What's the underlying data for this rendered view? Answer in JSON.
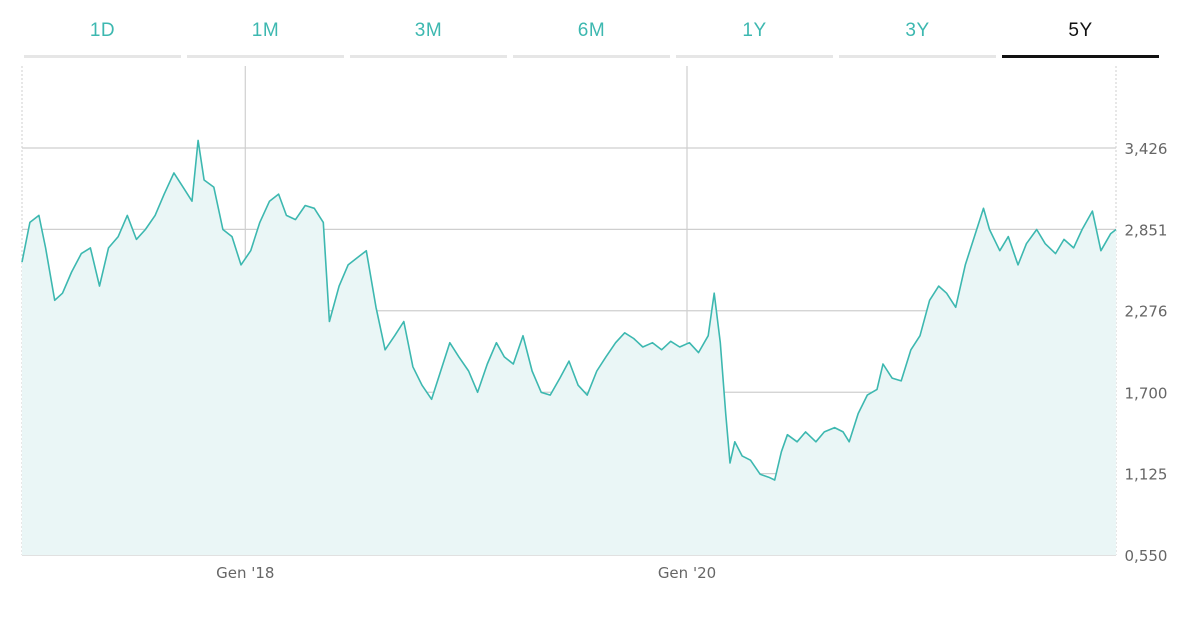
{
  "tabs": [
    {
      "label": "1D",
      "active": false
    },
    {
      "label": "1M",
      "active": false
    },
    {
      "label": "3M",
      "active": false
    },
    {
      "label": "6M",
      "active": false
    },
    {
      "label": "1Y",
      "active": false
    },
    {
      "label": "3Y",
      "active": false
    },
    {
      "label": "5Y",
      "active": true
    }
  ],
  "colors": {
    "accent": "#3db8b0",
    "area_fill": "#eaf6f6",
    "grid": "#cfcfcf",
    "axis_text": "#666666",
    "active_tab": "#111111"
  },
  "chart_data": {
    "type": "area",
    "title": "",
    "xlabel": "",
    "ylabel": "",
    "x_ticks": [
      {
        "label": "Gen '18",
        "date": "2018-01-01"
      },
      {
        "label": "Gen '20",
        "date": "2020-01-01"
      }
    ],
    "y_ticks": [
      0.55,
      1.125,
      1.7,
      2.276,
      2.851,
      3.426
    ],
    "y_tick_labels": [
      "0,550",
      "1,125",
      "1,700",
      "2,276",
      "2,851",
      "3,426"
    ],
    "ylim": [
      0.55,
      3.426
    ],
    "xlim": [
      "2016-12-28",
      "2021-12-10"
    ],
    "y_axis_position": "right",
    "grid": true,
    "series": [
      {
        "points": [
          [
            "2016-12-28",
            2.62
          ],
          [
            "2017-01-10",
            2.9
          ],
          [
            "2017-01-25",
            2.95
          ],
          [
            "2017-02-05",
            2.72
          ],
          [
            "2017-02-20",
            2.35
          ],
          [
            "2017-03-05",
            2.4
          ],
          [
            "2017-03-20",
            2.55
          ],
          [
            "2017-04-05",
            2.68
          ],
          [
            "2017-04-20",
            2.72
          ],
          [
            "2017-05-05",
            2.45
          ],
          [
            "2017-05-20",
            2.72
          ],
          [
            "2017-06-05",
            2.8
          ],
          [
            "2017-06-20",
            2.95
          ],
          [
            "2017-07-05",
            2.78
          ],
          [
            "2017-07-20",
            2.85
          ],
          [
            "2017-08-05",
            2.95
          ],
          [
            "2017-08-20",
            3.1
          ],
          [
            "2017-09-05",
            3.25
          ],
          [
            "2017-09-20",
            3.15
          ],
          [
            "2017-10-05",
            3.05
          ],
          [
            "2017-10-15",
            3.48
          ],
          [
            "2017-10-25",
            3.2
          ],
          [
            "2017-11-10",
            3.15
          ],
          [
            "2017-11-25",
            2.85
          ],
          [
            "2017-12-10",
            2.8
          ],
          [
            "2017-12-25",
            2.6
          ],
          [
            "2018-01-10",
            2.7
          ],
          [
            "2018-01-25",
            2.9
          ],
          [
            "2018-02-10",
            3.05
          ],
          [
            "2018-02-25",
            3.1
          ],
          [
            "2018-03-10",
            2.95
          ],
          [
            "2018-03-25",
            2.92
          ],
          [
            "2018-04-10",
            3.02
          ],
          [
            "2018-04-25",
            3.0
          ],
          [
            "2018-05-10",
            2.9
          ],
          [
            "2018-05-20",
            2.2
          ],
          [
            "2018-06-05",
            2.45
          ],
          [
            "2018-06-20",
            2.6
          ],
          [
            "2018-07-05",
            2.65
          ],
          [
            "2018-07-20",
            2.7
          ],
          [
            "2018-08-05",
            2.3
          ],
          [
            "2018-08-20",
            2.0
          ],
          [
            "2018-09-05",
            2.1
          ],
          [
            "2018-09-20",
            2.2
          ],
          [
            "2018-10-05",
            1.88
          ],
          [
            "2018-10-20",
            1.75
          ],
          [
            "2018-11-05",
            1.65
          ],
          [
            "2018-11-20",
            1.85
          ],
          [
            "2018-12-05",
            2.05
          ],
          [
            "2018-12-20",
            1.95
          ],
          [
            "2019-01-05",
            1.85
          ],
          [
            "2019-01-20",
            1.7
          ],
          [
            "2019-02-05",
            1.9
          ],
          [
            "2019-02-20",
            2.05
          ],
          [
            "2019-03-05",
            1.95
          ],
          [
            "2019-03-20",
            1.9
          ],
          [
            "2019-04-05",
            2.1
          ],
          [
            "2019-04-20",
            1.85
          ],
          [
            "2019-05-05",
            1.7
          ],
          [
            "2019-05-20",
            1.68
          ],
          [
            "2019-06-05",
            1.8
          ],
          [
            "2019-06-20",
            1.92
          ],
          [
            "2019-07-05",
            1.75
          ],
          [
            "2019-07-20",
            1.68
          ],
          [
            "2019-08-05",
            1.85
          ],
          [
            "2019-08-20",
            1.95
          ],
          [
            "2019-09-05",
            2.05
          ],
          [
            "2019-09-20",
            2.12
          ],
          [
            "2019-10-05",
            2.08
          ],
          [
            "2019-10-20",
            2.02
          ],
          [
            "2019-11-05",
            2.05
          ],
          [
            "2019-11-20",
            2.0
          ],
          [
            "2019-12-05",
            2.06
          ],
          [
            "2019-12-20",
            2.02
          ],
          [
            "2020-01-05",
            2.05
          ],
          [
            "2020-01-20",
            1.98
          ],
          [
            "2020-02-05",
            2.1
          ],
          [
            "2020-02-15",
            2.4
          ],
          [
            "2020-02-25",
            2.05
          ],
          [
            "2020-03-05",
            1.55
          ],
          [
            "2020-03-12",
            1.2
          ],
          [
            "2020-03-20",
            1.35
          ],
          [
            "2020-04-01",
            1.25
          ],
          [
            "2020-04-15",
            1.22
          ],
          [
            "2020-05-01",
            1.12
          ],
          [
            "2020-05-15",
            1.1
          ],
          [
            "2020-05-25",
            1.08
          ],
          [
            "2020-06-05",
            1.28
          ],
          [
            "2020-06-15",
            1.4
          ],
          [
            "2020-07-01",
            1.35
          ],
          [
            "2020-07-15",
            1.42
          ],
          [
            "2020-08-01",
            1.35
          ],
          [
            "2020-08-15",
            1.42
          ],
          [
            "2020-09-01",
            1.45
          ],
          [
            "2020-09-15",
            1.42
          ],
          [
            "2020-09-25",
            1.35
          ],
          [
            "2020-10-10",
            1.55
          ],
          [
            "2020-10-25",
            1.68
          ],
          [
            "2020-11-10",
            1.72
          ],
          [
            "2020-11-20",
            1.9
          ],
          [
            "2020-12-05",
            1.8
          ],
          [
            "2020-12-20",
            1.78
          ],
          [
            "2021-01-05",
            2.0
          ],
          [
            "2021-01-20",
            2.1
          ],
          [
            "2021-02-05",
            2.35
          ],
          [
            "2021-02-20",
            2.45
          ],
          [
            "2021-03-05",
            2.4
          ],
          [
            "2021-03-20",
            2.3
          ],
          [
            "2021-04-05",
            2.6
          ],
          [
            "2021-04-20",
            2.8
          ],
          [
            "2021-05-05",
            3.0
          ],
          [
            "2021-05-15",
            2.85
          ],
          [
            "2021-06-01",
            2.7
          ],
          [
            "2021-06-15",
            2.8
          ],
          [
            "2021-07-01",
            2.6
          ],
          [
            "2021-07-15",
            2.75
          ],
          [
            "2021-08-01",
            2.85
          ],
          [
            "2021-08-15",
            2.75
          ],
          [
            "2021-09-01",
            2.68
          ],
          [
            "2021-09-15",
            2.78
          ],
          [
            "2021-10-01",
            2.72
          ],
          [
            "2021-10-15",
            2.85
          ],
          [
            "2021-11-01",
            2.98
          ],
          [
            "2021-11-15",
            2.7
          ],
          [
            "2021-12-01",
            2.82
          ],
          [
            "2021-12-10",
            2.85
          ]
        ]
      }
    ]
  }
}
